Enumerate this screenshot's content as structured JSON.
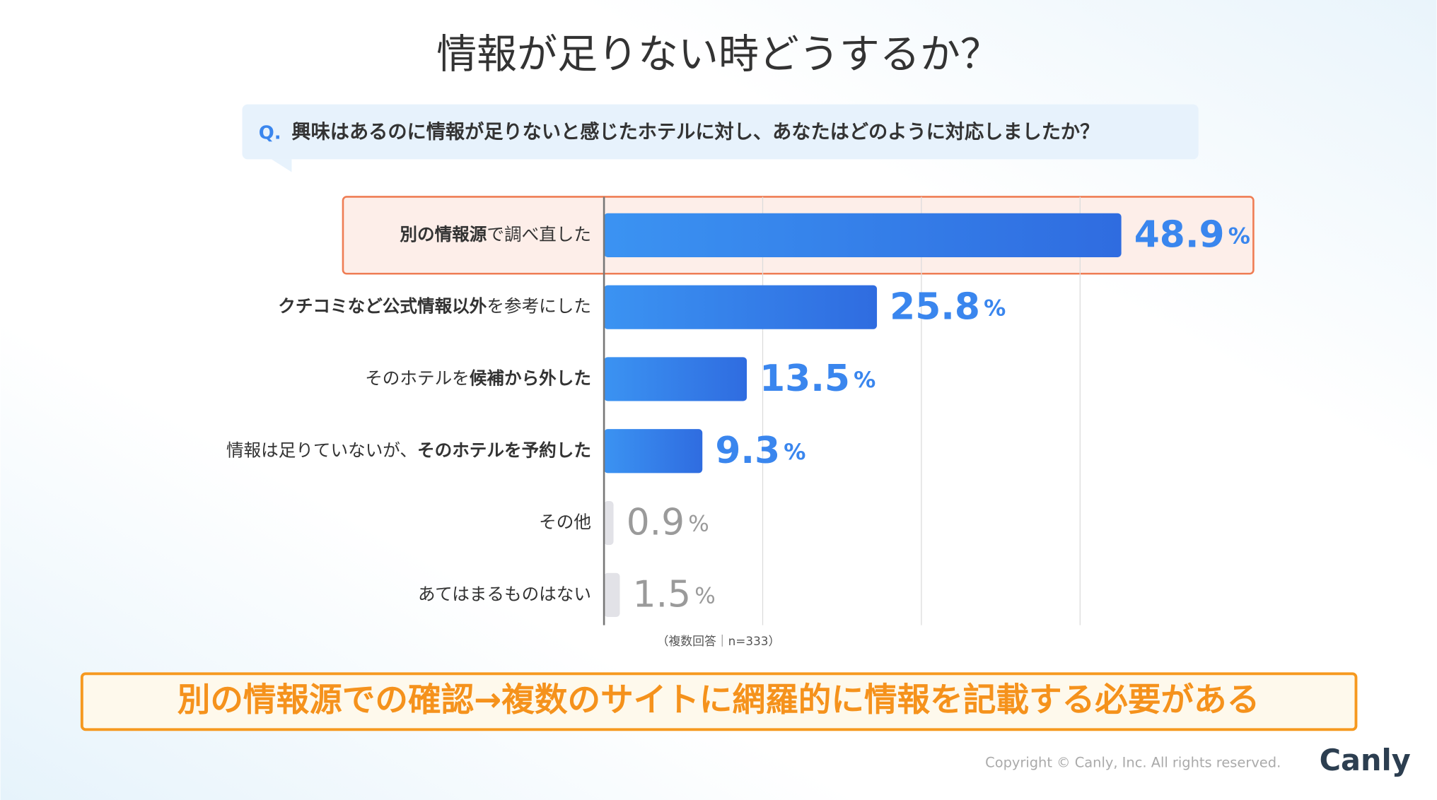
{
  "chart_data": {
    "type": "barh",
    "title": "情報が足りない時どうするか？",
    "question_prefix": "Q.",
    "question": "興味はあるのに情報が足りないと感じたホテルに対し、あなたはどのように対応しましたか？",
    "categories": [
      [
        {
          "text": "別の情報源",
          "bold": true
        },
        {
          "text": "で調べ直した",
          "bold": false
        }
      ],
      [
        {
          "text": "クチコミなど公式情報以外",
          "bold": true
        },
        {
          "text": "を参考にした",
          "bold": false
        }
      ],
      [
        {
          "text": "そのホテルを",
          "bold": false
        },
        {
          "text": "候補から外した",
          "bold": true
        }
      ],
      [
        {
          "text": "情報は足りていないが、",
          "bold": false
        },
        {
          "text": "そのホテルを予約した",
          "bold": true
        }
      ],
      [
        {
          "text": "その他",
          "bold": false
        }
      ],
      [
        {
          "text": "あてはまるものはない",
          "bold": false
        }
      ]
    ],
    "values": [
      48.9,
      25.8,
      13.5,
      9.3,
      0.9,
      1.5
    ],
    "value_unit": "%",
    "colors": [
      "#3478e6",
      "#3478e6",
      "#3478e6",
      "#3478e6",
      "#e2e2e7",
      "#e2e2e7"
    ],
    "label_colors": [
      "#3a86ee",
      "#3a86ee",
      "#3a86ee",
      "#3a86ee",
      "#9a9a9a",
      "#9a9a9a"
    ],
    "highlight_index": 0,
    "xlim": [
      0,
      60
    ],
    "xticks": [
      0,
      15,
      30,
      45
    ],
    "grid": true,
    "note": "（複数回答｜n=333）",
    "conclusion": "別の情報源での確認→複数のサイトに網羅的に情報を記載する必要がある",
    "copyright": "Copyright © Canly, Inc. All rights reserved.",
    "logo": "Canly"
  }
}
